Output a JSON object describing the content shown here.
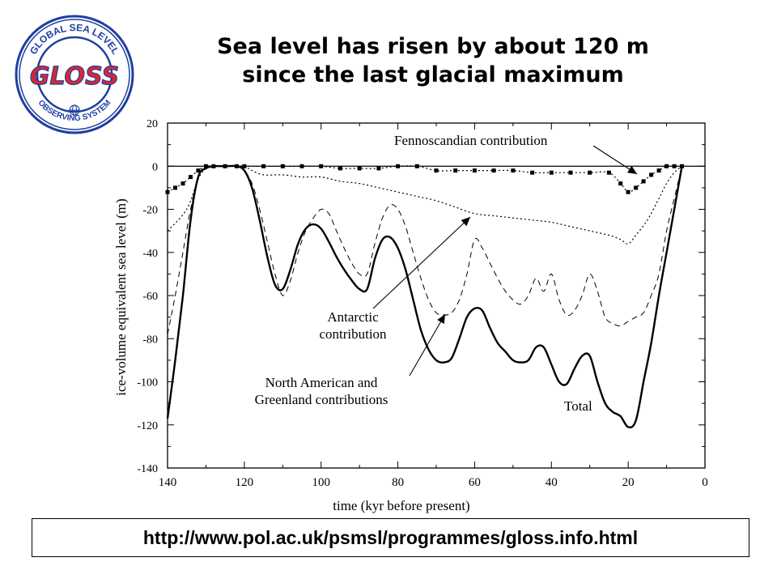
{
  "slide": {
    "title_line1": "Sea level has risen by about 120 m",
    "title_line2": "since the last glacial maximum",
    "url": "http://www.pol.ac.uk/psmsl/programmes/gloss.info.html"
  },
  "logo": {
    "word": "GLOSS",
    "ring_top": "GLOBAL SEA LEVEL",
    "ring_bottom": "OBSERVING SYSTEM",
    "colors": {
      "ring": "#1f3f9f",
      "word": "#e0252b",
      "inner": "#ffffff"
    }
  },
  "chart_data": {
    "type": "line",
    "xlabel": "time (kyr before present)",
    "ylabel": "ice-volume equivalent sea level (m)",
    "xlim": [
      140,
      0
    ],
    "ylim": [
      -140,
      20
    ],
    "xticks": [
      "140",
      "120",
      "100",
      "80",
      "60",
      "40",
      "20",
      "0"
    ],
    "yticks": [
      "20",
      "0",
      "-20",
      "-40",
      "-60",
      "-80",
      "-100",
      "-120",
      "-140"
    ],
    "grid": false,
    "series": [
      {
        "name": "Total",
        "style": "solid",
        "x": [
          140,
          138,
          136,
          134,
          132,
          130,
          128,
          125,
          122,
          120,
          118,
          116,
          114,
          112,
          110,
          108,
          106,
          104,
          102,
          100,
          98,
          96,
          94,
          92,
          90,
          88,
          86,
          84,
          82,
          80,
          78,
          76,
          74,
          72,
          70,
          68,
          66,
          64,
          62,
          60,
          58,
          56,
          54,
          52,
          50,
          48,
          46,
          44,
          42,
          40,
          38,
          36,
          34,
          32,
          30,
          28,
          26,
          24,
          22,
          20,
          18,
          16,
          14,
          12,
          10,
          8,
          6
        ],
        "y": [
          -117,
          -90,
          -60,
          -25,
          -5,
          -1,
          0,
          0,
          0,
          -2,
          -10,
          -25,
          -42,
          -55,
          -57,
          -48,
          -36,
          -29,
          -27,
          -29,
          -35,
          -42,
          -48,
          -53,
          -57,
          -57,
          -43,
          -34,
          -33,
          -38,
          -48,
          -62,
          -76,
          -85,
          -90,
          -91,
          -89,
          -80,
          -70,
          -66,
          -67,
          -75,
          -82,
          -86,
          -90,
          -91,
          -90,
          -84,
          -84,
          -92,
          -100,
          -101,
          -94,
          -88,
          -88,
          -100,
          -110,
          -114,
          -116,
          -121,
          -118,
          -100,
          -82,
          -60,
          -40,
          -20,
          0
        ]
      },
      {
        "name": "Fennoscandian contribution",
        "style": "dotted-squares",
        "x": [
          140,
          138,
          136,
          134,
          132,
          130,
          128,
          125,
          122,
          120,
          115,
          110,
          105,
          100,
          95,
          90,
          85,
          80,
          75,
          70,
          65,
          60,
          55,
          50,
          45,
          40,
          35,
          30,
          25,
          22,
          20,
          18,
          16,
          14,
          12,
          10,
          8,
          6
        ],
        "y": [
          -12,
          -10,
          -8,
          -5,
          -2,
          0,
          0,
          0,
          0,
          0,
          0,
          0,
          0,
          0,
          -1,
          -1,
          -1,
          0,
          0,
          -2,
          -2,
          -2,
          -2,
          -2,
          -3,
          -3,
          -3,
          -3,
          -3,
          -8,
          -12,
          -10,
          -7,
          -4,
          -2,
          0,
          0,
          0
        ]
      },
      {
        "name": "Antarctic contribution",
        "style": "dotted",
        "x": [
          140,
          135,
          132,
          130,
          128,
          125,
          122,
          120,
          118,
          115,
          110,
          105,
          100,
          95,
          90,
          85,
          80,
          75,
          70,
          65,
          60,
          55,
          50,
          45,
          40,
          35,
          30,
          25,
          22,
          20,
          18,
          15,
          12,
          10,
          8,
          6
        ],
        "y": [
          -30,
          -20,
          -6,
          -1,
          0,
          0,
          0,
          0,
          -2,
          -4,
          -4,
          -5,
          -5,
          -7,
          -8,
          -10,
          -12,
          -14,
          -16,
          -19,
          -22,
          -23,
          -24,
          -25,
          -26,
          -28,
          -30,
          -32,
          -34,
          -36,
          -32,
          -25,
          -15,
          -8,
          -3,
          0
        ]
      },
      {
        "name": "North American and Greenland contributions",
        "style": "dashed",
        "x": [
          140,
          138,
          136,
          134,
          132,
          130,
          128,
          125,
          122,
          120,
          118,
          116,
          114,
          112,
          110,
          108,
          106,
          104,
          102,
          100,
          98,
          96,
          94,
          92,
          90,
          88,
          86,
          84,
          82,
          80,
          78,
          76,
          74,
          72,
          70,
          68,
          66,
          64,
          62,
          60,
          58,
          56,
          54,
          52,
          50,
          48,
          46,
          44,
          42,
          40,
          38,
          36,
          34,
          32,
          30,
          28,
          26,
          24,
          22,
          20,
          18,
          16,
          14,
          12,
          10,
          8,
          6
        ],
        "y": [
          -78,
          -60,
          -40,
          -20,
          -5,
          -1,
          0,
          0,
          0,
          -2,
          -8,
          -20,
          -35,
          -50,
          -60,
          -53,
          -40,
          -30,
          -24,
          -20,
          -22,
          -30,
          -38,
          -45,
          -50,
          -50,
          -36,
          -24,
          -18,
          -20,
          -28,
          -40,
          -52,
          -62,
          -68,
          -69,
          -68,
          -62,
          -50,
          -34,
          -38,
          -45,
          -52,
          -58,
          -62,
          -64,
          -60,
          -52,
          -58,
          -50,
          -62,
          -69,
          -67,
          -60,
          -50,
          -58,
          -70,
          -73,
          -74,
          -72,
          -70,
          -68,
          -60,
          -50,
          -30,
          -15,
          0
        ]
      }
    ],
    "annotations": [
      {
        "text": "Fennoscandian  contribution"
      },
      {
        "text_lines": [
          "Antarctic",
          "contribution"
        ]
      },
      {
        "text_lines": [
          "North  American and",
          "Greenland  contributions"
        ]
      },
      {
        "text": "Total"
      }
    ]
  }
}
